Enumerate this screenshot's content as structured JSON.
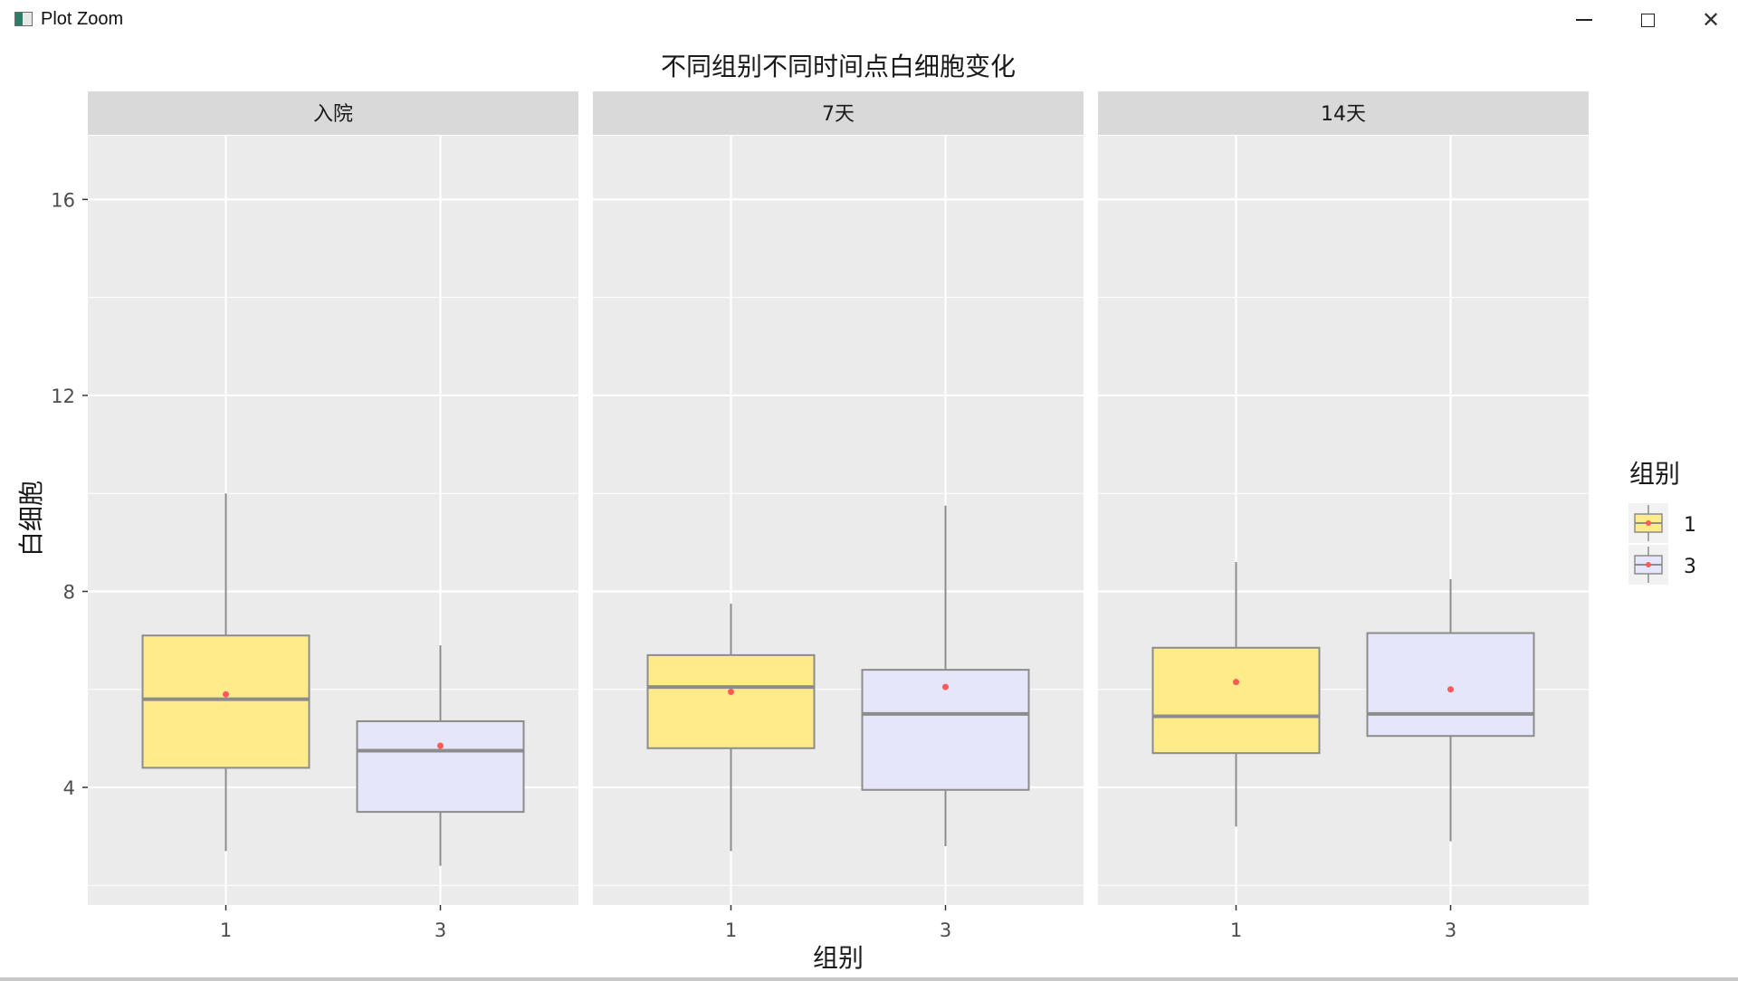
{
  "window": {
    "title": "Plot Zoom",
    "app_icon": "plot-window-icon",
    "controls": {
      "minimize": "minimize-icon",
      "maximize": "maximize-icon",
      "close": "close-icon"
    }
  },
  "colors": {
    "panel_bg": "#EBEBEB",
    "strip_bg": "#D9D9D9",
    "grid": "#FFFFFF",
    "group_1_fill": "#FFEB8A",
    "group_3_fill": "#E6E6FA",
    "box_line": "#8C8C8C",
    "mean_point": "#FF5A5A"
  },
  "chart_data": {
    "type": "box",
    "title": "不同组别不同时间点白细胞变化",
    "xlabel": "组别",
    "ylabel": "白细胞",
    "ylim": [
      1.6,
      17.3
    ],
    "yticks": [
      4,
      8,
      12,
      16
    ],
    "grid": true,
    "legend": {
      "title": "组别",
      "position": "right",
      "entries": [
        "1",
        "3"
      ]
    },
    "categories": [
      "1",
      "3"
    ],
    "facets": [
      {
        "label": "入院",
        "boxes": [
          {
            "group": "1",
            "whisker_low": 2.7,
            "q1": 4.4,
            "median": 5.8,
            "q3": 7.1,
            "whisker_high": 10.0,
            "mean": 5.9
          },
          {
            "group": "3",
            "whisker_low": 2.4,
            "q1": 3.5,
            "median": 4.75,
            "q3": 5.35,
            "whisker_high": 6.9,
            "mean": 4.85
          }
        ]
      },
      {
        "label": "7天",
        "boxes": [
          {
            "group": "1",
            "whisker_low": 2.7,
            "q1": 4.8,
            "median": 6.05,
            "q3": 6.7,
            "whisker_high": 7.75,
            "mean": 5.95
          },
          {
            "group": "3",
            "whisker_low": 2.8,
            "q1": 3.95,
            "median": 5.5,
            "q3": 6.4,
            "whisker_high": 9.75,
            "mean": 6.05
          }
        ]
      },
      {
        "label": "14天",
        "boxes": [
          {
            "group": "1",
            "whisker_low": 3.2,
            "q1": 4.7,
            "median": 5.45,
            "q3": 6.85,
            "whisker_high": 8.6,
            "mean": 6.15
          },
          {
            "group": "3",
            "whisker_low": 2.9,
            "q1": 5.05,
            "median": 5.5,
            "q3": 7.15,
            "whisker_high": 8.25,
            "mean": 6.0
          }
        ]
      }
    ]
  }
}
